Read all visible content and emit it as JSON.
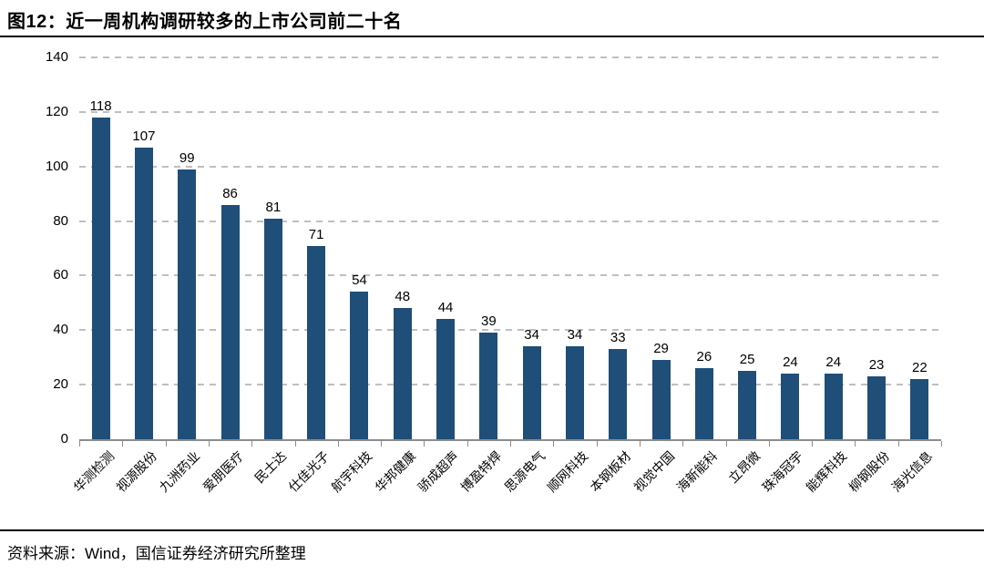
{
  "page": {
    "title": "图12：近一周机构调研较多的上市公司前二十名",
    "source": "资料来源：Wind，国信证券经济研究所整理"
  },
  "colors": {
    "bar": "#1f4e79",
    "gridline": "#bfbfbf",
    "axis": "#8c8c8c",
    "rule": "#000000",
    "text": "#000000"
  },
  "chart_data": {
    "type": "bar",
    "title": "图12：近一周机构调研较多的上市公司前二十名",
    "source_note": "资料来源：Wind，国信证券经济研究所整理",
    "categories": [
      "华测检测",
      "视源股份",
      "九洲药业",
      "爱朋医疗",
      "民士达",
      "仕佳光子",
      "航宇科技",
      "华邦健康",
      "骄成超声",
      "博盈特焊",
      "思源电气",
      "顺网科技",
      "本钢板材",
      "视觉中国",
      "海新能科",
      "立昂微",
      "珠海冠宇",
      "能辉科技",
      "柳钢股份",
      "海光信息"
    ],
    "values": [
      118,
      107,
      99,
      86,
      81,
      71,
      54,
      48,
      44,
      39,
      34,
      34,
      33,
      29,
      26,
      25,
      24,
      24,
      23,
      22
    ],
    "xlabel": "",
    "ylabel": "",
    "ylim": [
      0,
      140
    ],
    "yticks": [
      0,
      20,
      40,
      60,
      80,
      100,
      120,
      140
    ],
    "grid": "horizontal-dashed",
    "value_labels_shown": true,
    "legend": "none",
    "category_label_rotation_deg": -45
  }
}
